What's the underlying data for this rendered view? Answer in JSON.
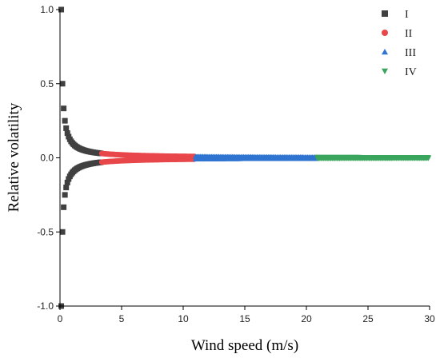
{
  "chart_data": {
    "type": "scatter",
    "title": "",
    "xlabel": "Wind speed (m/s)",
    "ylabel": "Relative volatility",
    "xlim": [
      0,
      30
    ],
    "ylim": [
      -1.0,
      1.0
    ],
    "xticks": [
      0,
      5,
      10,
      15,
      20,
      25,
      30
    ],
    "yticks": [
      -1.0,
      -0.5,
      0.0,
      0.5,
      1.0
    ],
    "ytick_labels": [
      "-1.0",
      "-0.5",
      "0.0",
      "0.5",
      "1.0"
    ],
    "grid": false,
    "legend_position": "top-right",
    "series": [
      {
        "name": "I",
        "marker": "square",
        "color": "#404040",
        "x_range": [
          0.1,
          3.3
        ],
        "x_step": 0.1,
        "y_formula": "±0.1/x"
      },
      {
        "name": "II",
        "marker": "circle",
        "color": "#e8474a",
        "x_range": [
          3.4,
          10.9
        ],
        "x_step": 0.1,
        "y_formula": "±0.1/x"
      },
      {
        "name": "III",
        "marker": "triangle-up",
        "color": "#2f74d0",
        "x_range": [
          11.0,
          20.8
        ],
        "x_step": 0.1,
        "y_formula": "±0.1/x"
      },
      {
        "name": "IV",
        "marker": "triangle-down",
        "color": "#3aa55c",
        "x_range": [
          20.9,
          29.9
        ],
        "x_step": 0.1,
        "y_formula": "±0.1/x"
      }
    ]
  }
}
